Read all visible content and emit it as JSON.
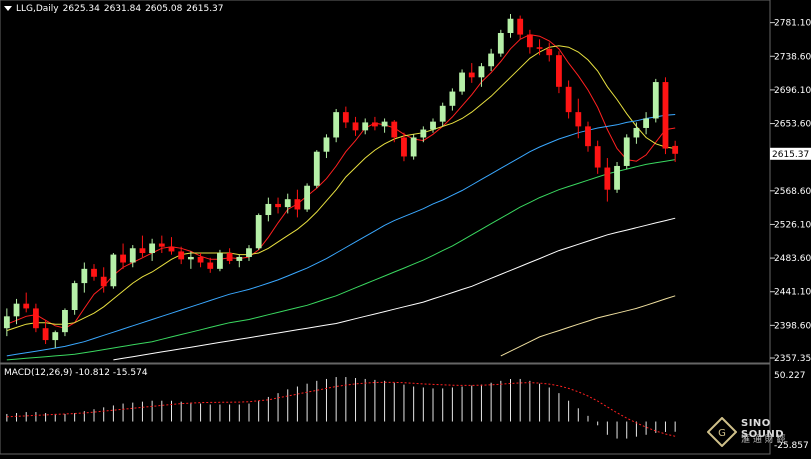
{
  "header": {
    "symbol_label": "LLG,Daily",
    "ohlc": [
      "2625.34",
      "2631.84",
      "2605.08",
      "2615.37"
    ]
  },
  "price_axis": {
    "ticks": [
      "2781.10",
      "2738.60",
      "2696.10",
      "2653.60",
      "2568.60",
      "2526.10",
      "2483.60",
      "2441.10",
      "2398.60",
      "2357.35"
    ],
    "current_price": "2615.37",
    "ylim": [
      2357.35,
      2792
    ]
  },
  "macd": {
    "label": "MACD(12,26,9) -10.812 -15.574",
    "axis_top": "50.227",
    "axis_bottom": "-25.857",
    "zero_axis": "0.00"
  },
  "logo": {
    "name": "SINO SOUND",
    "sub": "滙 通 財 經"
  },
  "colors": {
    "background": "#000000",
    "bull": "#b6f0a8",
    "bear": "#ff1414",
    "ma5": "#ff2020",
    "ma10": "#e8e040",
    "ma30": "#3aa8ff",
    "ma60": "#3ad860",
    "ma120": "#ffffff",
    "ma250": "#f0e0a0",
    "macd_hist": "#e8e8e8",
    "macd_signal": "#ff2020"
  },
  "chart_data": {
    "type": "candlestick",
    "candles": [
      [
        2395,
        2420,
        2385,
        2410
      ],
      [
        2410,
        2432,
        2400,
        2426
      ],
      [
        2426,
        2440,
        2415,
        2420
      ],
      [
        2420,
        2426,
        2390,
        2395
      ],
      [
        2395,
        2405,
        2375,
        2380
      ],
      [
        2380,
        2392,
        2370,
        2390
      ],
      [
        2390,
        2420,
        2385,
        2418
      ],
      [
        2418,
        2455,
        2412,
        2452
      ],
      [
        2452,
        2478,
        2440,
        2470
      ],
      [
        2470,
        2476,
        2455,
        2460
      ],
      [
        2460,
        2472,
        2440,
        2448
      ],
      [
        2448,
        2490,
        2445,
        2488
      ],
      [
        2488,
        2502,
        2470,
        2478
      ],
      [
        2478,
        2500,
        2472,
        2496
      ],
      [
        2496,
        2512,
        2485,
        2490
      ],
      [
        2490,
        2508,
        2480,
        2502
      ],
      [
        2502,
        2512,
        2490,
        2498
      ],
      [
        2498,
        2510,
        2488,
        2492
      ],
      [
        2492,
        2498,
        2476,
        2482
      ],
      [
        2482,
        2492,
        2470,
        2485
      ],
      [
        2485,
        2490,
        2472,
        2478
      ],
      [
        2478,
        2484,
        2465,
        2470
      ],
      [
        2470,
        2494,
        2467,
        2490
      ],
      [
        2490,
        2496,
        2476,
        2480
      ],
      [
        2480,
        2488,
        2472,
        2485
      ],
      [
        2485,
        2500,
        2480,
        2496
      ],
      [
        2496,
        2540,
        2494,
        2538
      ],
      [
        2538,
        2560,
        2530,
        2552
      ],
      [
        2552,
        2560,
        2540,
        2548
      ],
      [
        2548,
        2565,
        2540,
        2558
      ],
      [
        2558,
        2570,
        2535,
        2545
      ],
      [
        2545,
        2578,
        2542,
        2575
      ],
      [
        2575,
        2620,
        2572,
        2618
      ],
      [
        2618,
        2640,
        2610,
        2636
      ],
      [
        2636,
        2672,
        2630,
        2668
      ],
      [
        2668,
        2675,
        2648,
        2655
      ],
      [
        2655,
        2662,
        2638,
        2645
      ],
      [
        2645,
        2660,
        2640,
        2655
      ],
      [
        2655,
        2662,
        2645,
        2650
      ],
      [
        2650,
        2660,
        2642,
        2656
      ],
      [
        2656,
        2658,
        2630,
        2636
      ],
      [
        2636,
        2642,
        2606,
        2612
      ],
      [
        2612,
        2640,
        2608,
        2636
      ],
      [
        2636,
        2650,
        2630,
        2646
      ],
      [
        2646,
        2660,
        2642,
        2656
      ],
      [
        2656,
        2680,
        2650,
        2676
      ],
      [
        2676,
        2698,
        2670,
        2694
      ],
      [
        2694,
        2722,
        2690,
        2718
      ],
      [
        2718,
        2730,
        2705,
        2712
      ],
      [
        2712,
        2730,
        2700,
        2726
      ],
      [
        2726,
        2748,
        2720,
        2742
      ],
      [
        2742,
        2772,
        2738,
        2768
      ],
      [
        2768,
        2792,
        2762,
        2786
      ],
      [
        2786,
        2790,
        2760,
        2766
      ],
      [
        2766,
        2772,
        2742,
        2750
      ],
      [
        2750,
        2760,
        2740,
        2748
      ],
      [
        2748,
        2756,
        2732,
        2740
      ],
      [
        2740,
        2745,
        2692,
        2700
      ],
      [
        2700,
        2708,
        2660,
        2668
      ],
      [
        2668,
        2685,
        2635,
        2650
      ],
      [
        2650,
        2656,
        2618,
        2625
      ],
      [
        2625,
        2632,
        2590,
        2598
      ],
      [
        2598,
        2610,
        2555,
        2570
      ],
      [
        2570,
        2605,
        2566,
        2600
      ],
      [
        2600,
        2640,
        2596,
        2636
      ],
      [
        2636,
        2655,
        2628,
        2648
      ],
      [
        2648,
        2668,
        2640,
        2660
      ],
      [
        2660,
        2710,
        2655,
        2706
      ],
      [
        2706,
        2712,
        2615,
        2622
      ],
      [
        2625.34,
        2631.84,
        2605.08,
        2615.37
      ]
    ],
    "ma_series": [
      {
        "name": "MA5",
        "values": [
          2400,
          2405,
          2410,
          2412,
          2405,
          2398,
          2395,
          2402,
          2420,
          2438,
          2448,
          2462,
          2472,
          2478,
          2484,
          2490,
          2496,
          2498,
          2496,
          2492,
          2486,
          2482,
          2482,
          2484,
          2483,
          2485,
          2494,
          2510,
          2528,
          2545,
          2552,
          2562,
          2572,
          2584,
          2600,
          2618,
          2632,
          2648,
          2654,
          2652,
          2648,
          2640,
          2634,
          2632,
          2640,
          2650,
          2662,
          2676,
          2690,
          2706,
          2718,
          2732,
          2748,
          2760,
          2766,
          2764,
          2758,
          2748,
          2730,
          2714,
          2696,
          2674,
          2646,
          2622,
          2608,
          2606,
          2614,
          2630,
          2646,
          2648
        ]
      },
      {
        "name": "MA10",
        "values": [
          2392,
          2396,
          2400,
          2402,
          2402,
          2400,
          2400,
          2402,
          2408,
          2414,
          2422,
          2432,
          2442,
          2452,
          2460,
          2466,
          2474,
          2482,
          2488,
          2490,
          2490,
          2490,
          2490,
          2490,
          2488,
          2488,
          2490,
          2496,
          2504,
          2512,
          2520,
          2530,
          2542,
          2556,
          2570,
          2586,
          2598,
          2610,
          2620,
          2628,
          2634,
          2638,
          2640,
          2642,
          2646,
          2650,
          2654,
          2660,
          2668,
          2678,
          2688,
          2700,
          2712,
          2724,
          2736,
          2744,
          2750,
          2752,
          2750,
          2744,
          2734,
          2720,
          2700,
          2684,
          2666,
          2650,
          2636,
          2628,
          2624,
          2622
        ]
      },
      {
        "name": "MA30",
        "values": [
          2360,
          2362,
          2364,
          2366,
          2368,
          2370,
          2372,
          2375,
          2378,
          2382,
          2386,
          2390,
          2394,
          2398,
          2402,
          2406,
          2410,
          2414,
          2418,
          2422,
          2426,
          2430,
          2434,
          2438,
          2441,
          2444,
          2448,
          2452,
          2456,
          2461,
          2466,
          2471,
          2477,
          2483,
          2490,
          2497,
          2504,
          2511,
          2518,
          2525,
          2531,
          2536,
          2541,
          2546,
          2552,
          2557,
          2563,
          2569,
          2576,
          2583,
          2590,
          2597,
          2604,
          2611,
          2618,
          2624,
          2629,
          2634,
          2638,
          2642,
          2645,
          2648,
          2650,
          2652,
          2655,
          2657,
          2660,
          2662,
          2664,
          2665
        ]
      },
      {
        "name": "MA60",
        "values": [
          2355,
          2356,
          2357,
          2358,
          2359,
          2360,
          2361,
          2362,
          2364,
          2366,
          2368,
          2370,
          2372,
          2374,
          2376,
          2378,
          2381,
          2384,
          2387,
          2390,
          2393,
          2396,
          2399,
          2402,
          2404,
          2406,
          2409,
          2412,
          2415,
          2418,
          2421,
          2424,
          2428,
          2432,
          2436,
          2441,
          2446,
          2451,
          2456,
          2461,
          2466,
          2471,
          2476,
          2481,
          2487,
          2493,
          2499,
          2506,
          2513,
          2520,
          2527,
          2534,
          2541,
          2548,
          2554,
          2560,
          2565,
          2570,
          2574,
          2578,
          2582,
          2586,
          2590,
          2593,
          2596,
          2599,
          2602,
          2604,
          2606,
          2608
        ]
      },
      {
        "name": "MA120",
        "values": [
          2340,
          2341,
          2342,
          2343,
          2344,
          2345,
          2346,
          2347,
          2349,
          2351,
          2353,
          2355,
          2357,
          2359,
          2361,
          2363,
          2365,
          2367,
          2369,
          2371,
          2373,
          2375,
          2377,
          2379,
          2381,
          2383,
          2385,
          2387,
          2389,
          2391,
          2393,
          2395,
          2397,
          2399,
          2401,
          2404,
          2407,
          2410,
          2413,
          2416,
          2419,
          2422,
          2425,
          2428,
          2432,
          2436,
          2440,
          2444,
          2448,
          2453,
          2458,
          2463,
          2468,
          2473,
          2478,
          2483,
          2488,
          2493,
          2497,
          2501,
          2505,
          2509,
          2513,
          2516,
          2519,
          2522,
          2525,
          2528,
          2531,
          2534
        ]
      },
      {
        "name": "MA250",
        "values": [
          2200,
          2201,
          2202,
          2203,
          2204,
          2205,
          2206,
          2207,
          2208,
          2209,
          2210,
          2211,
          2212,
          2213,
          2214,
          2215,
          2216,
          2217,
          2218,
          2219,
          2220,
          2221,
          2222,
          2223,
          2224,
          2225,
          2226,
          2227,
          2228,
          2229,
          2230,
          2231,
          2232,
          2233,
          2234,
          2235,
          2236,
          2237,
          2238,
          2239,
          2240,
          2241,
          2242,
          2243,
          2244,
          2246,
          2248,
          2250,
          2252,
          2300,
          2354,
          2360,
          2366,
          2372,
          2378,
          2384,
          2388,
          2392,
          2396,
          2400,
          2404,
          2408,
          2411,
          2414,
          2417,
          2420,
          2424,
          2428,
          2432,
          2436
        ]
      }
    ],
    "macd_hist": [
      8,
      9,
      10,
      10,
      9,
      8,
      8,
      9,
      11,
      13,
      15,
      17,
      19,
      20,
      21,
      22,
      22,
      22,
      21,
      20,
      19,
      18,
      18,
      18,
      18,
      19,
      22,
      26,
      30,
      34,
      37,
      40,
      43,
      45,
      47,
      47,
      46,
      45,
      44,
      43,
      41,
      39,
      37,
      36,
      35,
      35,
      36,
      37,
      38,
      39,
      41,
      43,
      45,
      45,
      43,
      40,
      36,
      30,
      22,
      14,
      6,
      -4,
      -14,
      -18,
      -18,
      -16,
      -14,
      -12,
      -11,
      -10.8
    ],
    "macd_signal": [
      5,
      5.5,
      6,
      6.5,
      7,
      7.5,
      8,
      8.5,
      9,
      10,
      11,
      12,
      13,
      14,
      15,
      16,
      17,
      18,
      19,
      19.5,
      20,
      20.2,
      20.3,
      20.4,
      20.5,
      21,
      22,
      23,
      25,
      27,
      29,
      31,
      33,
      35,
      37,
      38.5,
      39.8,
      40.6,
      41.2,
      41.5,
      41.4,
      41,
      40.4,
      39.8,
      39.2,
      38.8,
      38.4,
      38.2,
      38.2,
      38.4,
      38.8,
      39.4,
      40.2,
      40.8,
      41,
      40.6,
      39.6,
      37.8,
      35,
      31.4,
      27,
      21.6,
      15.4,
      9.2,
      3.6,
      -1.4,
      -6,
      -10,
      -13.2,
      -15.574
    ]
  }
}
